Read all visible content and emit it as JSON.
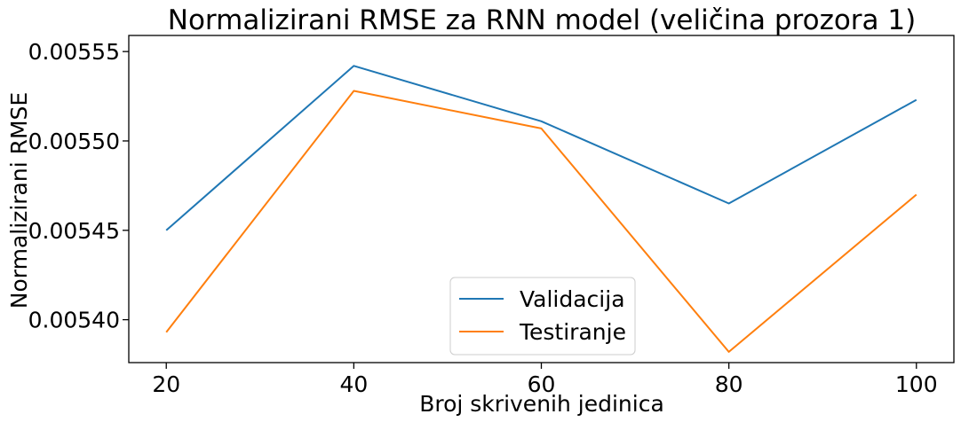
{
  "chart_data": {
    "type": "line",
    "title": "Normalizirani RMSE za RNN model (veličina prozora 1)",
    "xlabel": "Broj skrivenih jedinica",
    "ylabel": "Normalizirani RMSE",
    "x": [
      20,
      40,
      60,
      80,
      100
    ],
    "xlim": [
      16,
      104
    ],
    "ylim": [
      0.005376,
      0.005559
    ],
    "xticks": [
      20,
      40,
      60,
      80,
      100
    ],
    "xtick_labels": [
      "20",
      "40",
      "60",
      "80",
      "100"
    ],
    "yticks": [
      0.0054,
      0.00545,
      0.0055,
      0.00555
    ],
    "ytick_labels": [
      "0.00540",
      "0.00545",
      "0.00550",
      "0.00555"
    ],
    "grid": false,
    "legend_position": "lower center",
    "series": [
      {
        "name": "Validacija",
        "color": "#1f77b4",
        "values": [
          0.00545,
          0.005542,
          0.005511,
          0.005465,
          0.005523
        ]
      },
      {
        "name": "Testiranje",
        "color": "#ff7f0e",
        "values": [
          0.005393,
          0.005528,
          0.005507,
          0.005382,
          0.00547
        ]
      }
    ]
  }
}
